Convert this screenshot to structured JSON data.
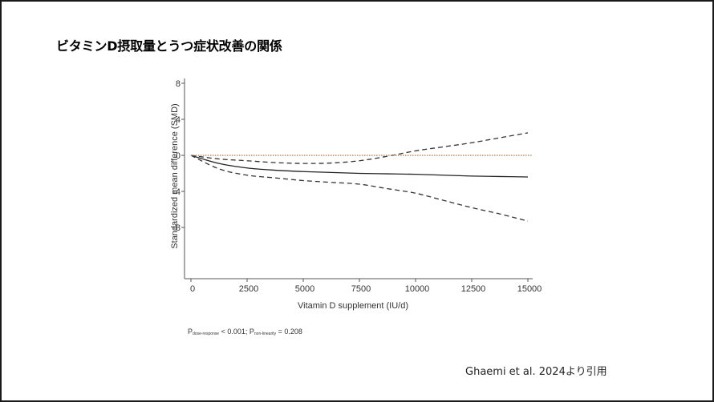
{
  "slide": {
    "title": "ビタミンD摂取量とうつ症状改善の関係",
    "citation": "Ghaemi et al. 2024より引用",
    "p_note": {
      "p1_label": "P",
      "p1_sub": "dose-response",
      "p1_value": " < 0.001; ",
      "p2_label": "P",
      "p2_sub": "non-linearity",
      "p2_value": " = 0.208"
    }
  },
  "chart_data": {
    "type": "line",
    "title": "",
    "xlabel": "Vitamin D supplement (IU/d)",
    "ylabel": "Standardized mean difference (SMD)",
    "xlim": [
      0,
      15000
    ],
    "ylim": [
      -12,
      8
    ],
    "x_ticks": [
      0,
      2500,
      5000,
      7500,
      10000,
      12500,
      15000
    ],
    "x_tick_labels": [
      "0",
      "2500",
      "5000",
      "7500",
      "10000",
      "12500",
      "15000"
    ],
    "y_ticks": [
      8,
      4,
      0,
      -4,
      -8
    ],
    "y_tick_labels": [
      "8",
      "4",
      "0",
      "-4",
      "-8"
    ],
    "grid": false,
    "x": [
      0,
      1250,
      2500,
      3750,
      5000,
      6250,
      7500,
      8750,
      10000,
      11250,
      12500,
      13750,
      15000
    ],
    "series": [
      {
        "name": "SMD estimate",
        "style": "solid",
        "color": "#222222",
        "values": [
          0,
          -0.9,
          -1.4,
          -1.65,
          -1.8,
          -1.9,
          -2.0,
          -2.05,
          -2.1,
          -2.2,
          -2.3,
          -2.35,
          -2.4
        ]
      },
      {
        "name": "Upper 95% CI",
        "style": "dashed",
        "color": "#333333",
        "values": [
          0,
          -0.4,
          -0.6,
          -0.8,
          -0.9,
          -0.85,
          -0.6,
          -0.1,
          0.5,
          0.95,
          1.4,
          1.95,
          2.5
        ]
      },
      {
        "name": "Lower 95% CI",
        "style": "dashed",
        "color": "#333333",
        "values": [
          0,
          -1.5,
          -2.2,
          -2.5,
          -2.8,
          -3.0,
          -3.2,
          -3.7,
          -4.2,
          -5.0,
          -5.8,
          -6.5,
          -7.3
        ]
      },
      {
        "name": "Reference (SMD = 0)",
        "style": "dotted",
        "color": "#c8865a",
        "values": [
          0,
          0,
          0,
          0,
          0,
          0,
          0,
          0,
          0,
          0,
          0,
          0,
          0
        ]
      }
    ],
    "annotations": [
      "P dose-response < 0.001; P non-linearity = 0.208"
    ]
  }
}
